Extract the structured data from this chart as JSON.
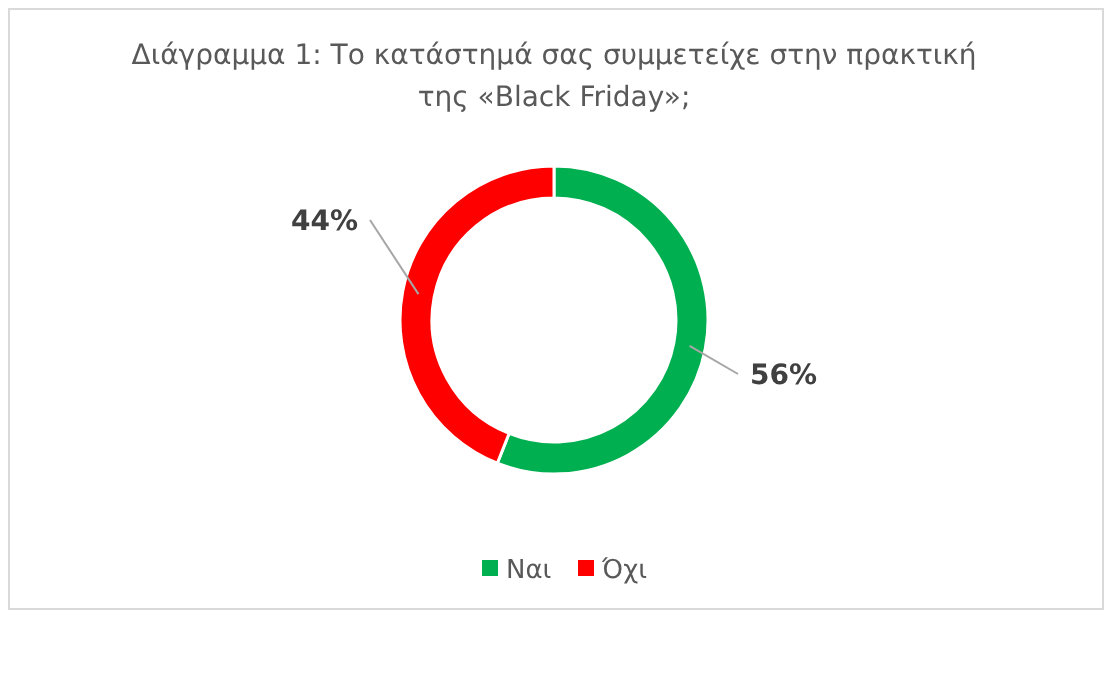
{
  "chart_data": {
    "type": "donut",
    "title": "Διάγραμμα 1: Το κατάστημά σας συμμετείχε στην πρακτική\nτης «Black Friday»;",
    "categories": [
      "Ναι",
      "Όχι"
    ],
    "values": [
      56,
      44
    ],
    "colors": [
      "#00b050",
      "#ff0000"
    ],
    "value_labels": [
      "56%",
      "44%"
    ],
    "legend": "bottom"
  }
}
